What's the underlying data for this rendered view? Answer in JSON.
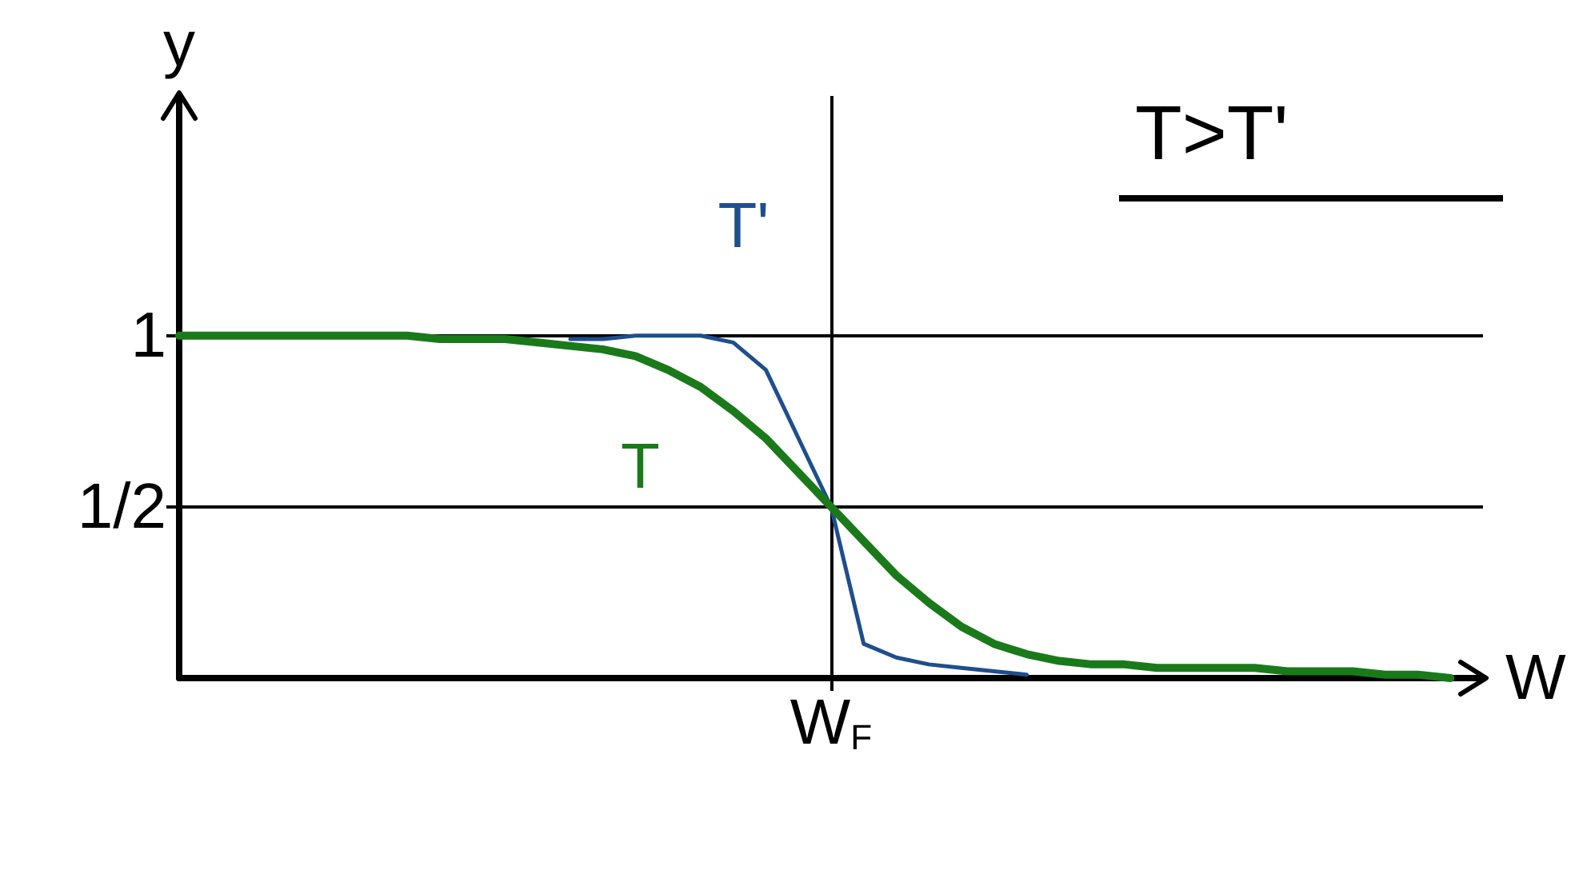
{
  "chart_data": {
    "type": "line",
    "xlabel": "W",
    "ylabel": "y",
    "categories": [
      null,
      null,
      null,
      null,
      null,
      null,
      null,
      null,
      null,
      null,
      null,
      null,
      null,
      null,
      null,
      null,
      null,
      null,
      null,
      null,
      "W$_{F}$",
      null,
      null,
      null,
      null,
      null,
      null,
      null,
      null,
      null,
      null,
      null,
      null,
      null,
      null,
      null,
      null,
      null,
      null,
      null,
      null
    ],
    "ylim": [
      0,
      1.7
    ],
    "yticks": [
      {
        "value": 0.5,
        "label": "1/2"
      },
      {
        "value": 1,
        "label": "1"
      }
    ],
    "series": [
      {
        "name": "T",
        "color": "#1a7a1a",
        "values": [
          1,
          1,
          1,
          1,
          1,
          1,
          1,
          1,
          0.99,
          0.99,
          0.99,
          0.98,
          0.97,
          0.96,
          0.94,
          0.9,
          0.85,
          0.78,
          0.7,
          0.6,
          0.5,
          0.4,
          0.3,
          0.22,
          0.15,
          0.1,
          0.07,
          0.05,
          0.04,
          0.04,
          0.03,
          0.03,
          0.03,
          0.03,
          0.02,
          0.02,
          0.02,
          0.01,
          0.01,
          0,
          null
        ]
      },
      {
        "name": "T'",
        "color": "#1f4e8c",
        "values": [
          null,
          null,
          null,
          null,
          null,
          null,
          null,
          null,
          null,
          null,
          null,
          null,
          0.99,
          0.99,
          1,
          1,
          1,
          0.98,
          0.9,
          0.7,
          0.5,
          0.1,
          0.06,
          0.04,
          0.03,
          0.02,
          0.01,
          null,
          null,
          null,
          null,
          null,
          null,
          null,
          null,
          null,
          null,
          null,
          null,
          null,
          null
        ]
      }
    ],
    "ref_lines": [
      {
        "axis": "y",
        "value": 1,
        "color": "#000000"
      },
      {
        "axis": "y",
        "value": 0.5,
        "color": "#000000"
      },
      {
        "axis": "x",
        "value": "W$_{F}$",
        "color": "#000000"
      }
    ],
    "annotations": [
      "T>T'"
    ],
    "grid": false,
    "legend": false,
    "marker": "none",
    "line_style": "solid"
  }
}
